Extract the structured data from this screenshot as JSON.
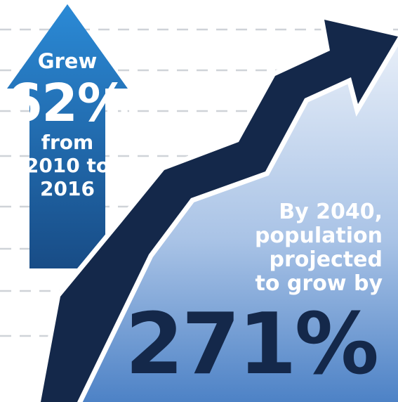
{
  "colors": {
    "background": "#ffffff",
    "dash_lines": "#cfd3d8",
    "up_arrow_top": "#2b8ad6",
    "up_arrow_bottom": "#184c86",
    "area_top": "#e7eef8",
    "area_bottom": "#4d82c6",
    "trend_arrow": "#14284a",
    "text_light": "#ffffff",
    "text_dark": "#14284a"
  },
  "icons": {
    "up_arrow": "up-arrow-icon",
    "trend_arrow": "trend-arrow-icon"
  },
  "up_arrow": {
    "line1": "Grew",
    "percent": "62%",
    "line3": "from",
    "line4": "2010 to",
    "line5": "2016"
  },
  "projection": {
    "line1": "By 2040,",
    "line2": "population",
    "line3": "projected",
    "line4": "to grow by",
    "percent": "271%"
  }
}
